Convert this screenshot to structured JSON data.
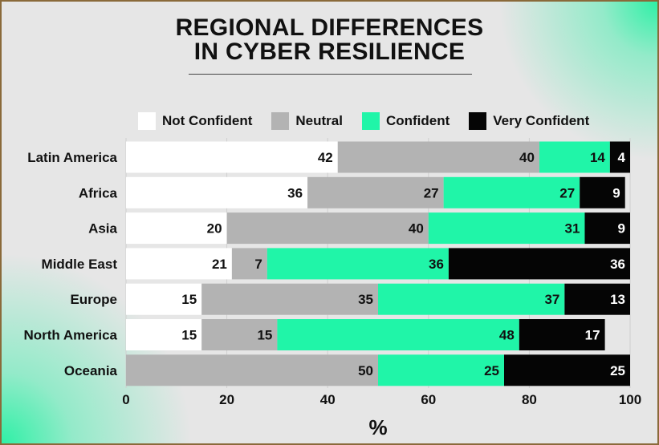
{
  "header": {
    "title_line1": "REGIONAL DIFFERENCES",
    "title_line2": "IN CYBER RESILIENCE"
  },
  "chart_data": {
    "type": "bar",
    "orientation": "horizontal",
    "stacked": true,
    "title": "REGIONAL DIFFERENCES IN CYBER RESILIENCE",
    "xlabel": "%",
    "ylabel": "",
    "xlim": [
      0,
      100
    ],
    "xticks": [
      0,
      20,
      40,
      60,
      80,
      100
    ],
    "grid": true,
    "legend_position": "top",
    "categories": [
      "Latin America",
      "Africa",
      "Asia",
      "Middle East",
      "Europe",
      "North America",
      "Oceania"
    ],
    "series": [
      {
        "name": "Not Confident",
        "color": "#ffffff",
        "label_color": "#111111",
        "values": [
          42,
          36,
          20,
          21,
          15,
          15,
          0
        ]
      },
      {
        "name": "Neutral",
        "color": "#b3b3b3",
        "label_color": "#111111",
        "values": [
          40,
          27,
          40,
          7,
          35,
          15,
          50
        ]
      },
      {
        "name": "Confident",
        "color": "#20f5a8",
        "label_color": "#111111",
        "values": [
          14,
          27,
          31,
          36,
          37,
          48,
          25
        ]
      },
      {
        "name": "Very Confident",
        "color": "#050505",
        "label_color": "#ffffff",
        "values": [
          4,
          9,
          9,
          36,
          13,
          17,
          25
        ]
      }
    ]
  }
}
